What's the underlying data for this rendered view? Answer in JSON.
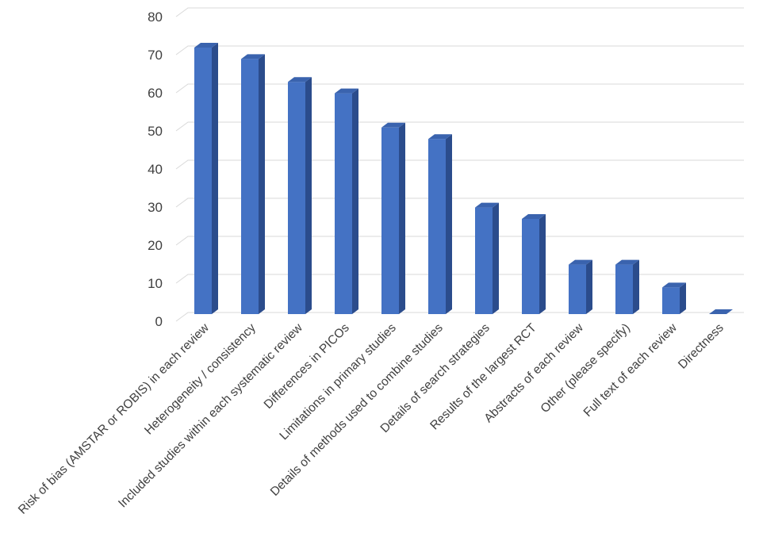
{
  "chart_data": {
    "type": "bar",
    "style": "3d-column",
    "categories": [
      "Risk of bias (AMSTAR or ROBIS) in each review",
      "Heterogeneity / consistency",
      "Included studies within each systematic review",
      "Differences in PICOs",
      "Limitations in primary studies",
      "Details of methods used to combine studies",
      "Details of search strategies",
      "Results of the largest RCT",
      "Abstracts of each review",
      "Other (please specify)",
      "Full text of each review",
      "Directness"
    ],
    "values": [
      70,
      67,
      61,
      58,
      49,
      46,
      28,
      25,
      13,
      13,
      7,
      0
    ],
    "ylim": [
      0,
      80
    ],
    "yticks": [
      0,
      10,
      20,
      30,
      40,
      50,
      60,
      70,
      80
    ],
    "title": "",
    "xlabel": "",
    "ylabel": "",
    "grid": true,
    "legend": "none",
    "colors": {
      "bar_front": "#4472C4",
      "bar_side": "#2B4C8C",
      "bar_top": "#3A63AE",
      "gridline": "#D9D9D9",
      "text": "#404040"
    }
  }
}
